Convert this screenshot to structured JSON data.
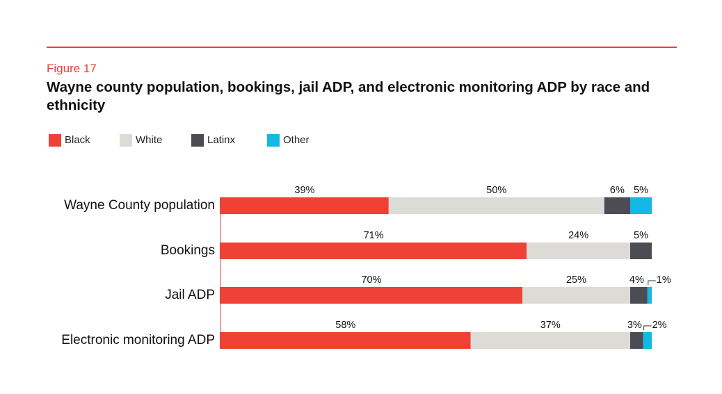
{
  "figure_label": "Figure 17",
  "title": "Wayne county population, bookings, jail ADP, and electronic monitoring ADP by race and ethnicity",
  "legend": [
    {
      "label": "Black",
      "color": "#ef4136"
    },
    {
      "label": "White",
      "color": "#dcdbd6"
    },
    {
      "label": "Latinx",
      "color": "#4c4c54"
    },
    {
      "label": "Other",
      "color": "#13b9e3"
    }
  ],
  "chart_data": {
    "type": "bar",
    "orientation": "horizontal",
    "stacked": true,
    "title": "Wayne county population, bookings, jail ADP, and electronic monitoring ADP by race and ethnicity",
    "categories": [
      "Wayne County population",
      "Bookings",
      "Jail ADP",
      "Electronic monitoring ADP"
    ],
    "series": [
      {
        "name": "Black",
        "values": [
          39,
          71,
          70,
          58
        ],
        "labels": [
          "39%",
          "71%",
          "70%",
          "58%"
        ]
      },
      {
        "name": "White",
        "values": [
          50,
          24,
          25,
          37
        ],
        "labels": [
          "50%",
          "24%",
          "25%",
          "37%"
        ]
      },
      {
        "name": "Latinx",
        "values": [
          6,
          5,
          4,
          3
        ],
        "labels": [
          "6%",
          "5%",
          "4%",
          "3%"
        ]
      },
      {
        "name": "Other",
        "values": [
          5,
          0,
          1,
          2
        ],
        "labels": [
          "5%",
          "",
          "1%",
          "2%"
        ]
      }
    ],
    "xlim": [
      0,
      100
    ],
    "xlabel": "",
    "ylabel": "",
    "grid": false,
    "legend_position": "top-left"
  }
}
